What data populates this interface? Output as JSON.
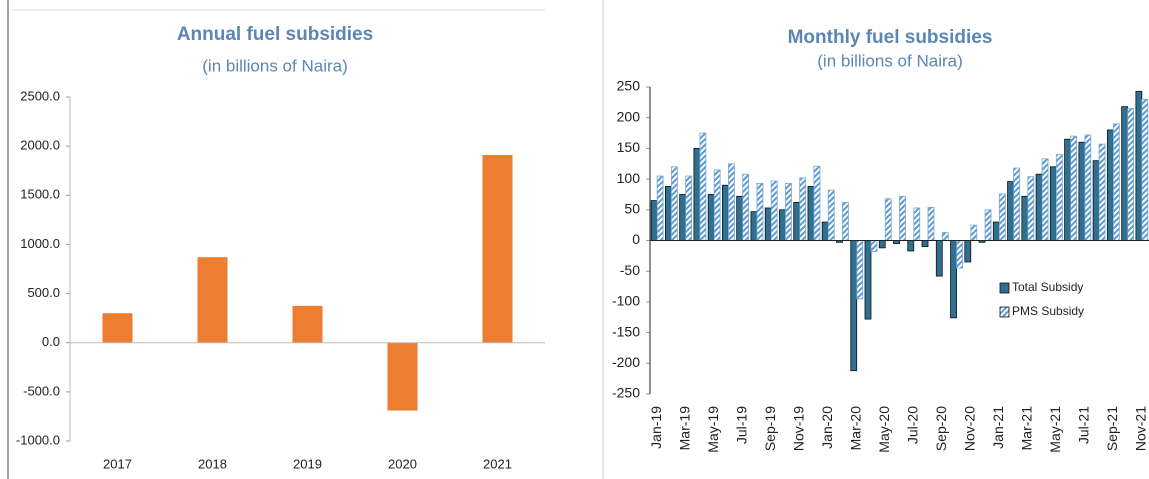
{
  "chart_data": [
    {
      "type": "bar",
      "title": "Annual fuel subsidies",
      "subtitle": "(in billions of Naira)",
      "categories": [
        "2017",
        "2018",
        "2019",
        "2020",
        "2021"
      ],
      "values": [
        300,
        870,
        375,
        -690,
        1910
      ],
      "color": "#ed7d31",
      "ylim": [
        -1000,
        2500
      ],
      "yticks": [
        {
          "value": -1000,
          "label": "-1000.0"
        },
        {
          "value": -500,
          "label": "-500.0"
        },
        {
          "value": 0,
          "label": "0.0"
        },
        {
          "value": 500,
          "label": "500.0"
        },
        {
          "value": 1000,
          "label": "1000.0"
        },
        {
          "value": 1500,
          "label": "1500.0"
        },
        {
          "value": 2000,
          "label": "2000.0"
        },
        {
          "value": 2500,
          "label": "2500.0"
        }
      ]
    },
    {
      "type": "grouped_bar",
      "title": "Monthly fuel subsidies",
      "subtitle": "(in billions of Naira)",
      "categories": [
        "Jan-19",
        null,
        "Mar-19",
        null,
        "May-19",
        null,
        "Jul-19",
        null,
        "Sep-19",
        null,
        "Nov-19",
        null,
        "Jan-20",
        null,
        "Mar-20",
        null,
        "May-20",
        null,
        "Jul-20",
        null,
        "Sep-20",
        null,
        "Nov-20",
        null,
        "Jan-21",
        null,
        "Mar-21",
        null,
        "May-21",
        null,
        "Jul-21",
        null,
        "Sep-21",
        null,
        "Nov-21"
      ],
      "series": [
        {
          "name": "Total Subsidy",
          "color": "#2f6f8f",
          "values": [
            65,
            88,
            75,
            150,
            75,
            90,
            72,
            47,
            53,
            50,
            62,
            88,
            30,
            -3,
            -212,
            -128,
            -12,
            -5,
            -17,
            -10,
            -58,
            -126,
            -35,
            -3,
            30,
            96,
            72,
            108,
            120,
            165,
            160,
            130,
            180,
            218,
            243
          ]
        },
        {
          "name": "PMS Subsidy",
          "color": "#9dc3e6",
          "values": [
            105,
            120,
            105,
            175,
            115,
            125,
            108,
            93,
            97,
            93,
            102,
            121,
            82,
            62,
            -95,
            -18,
            68,
            72,
            53,
            54,
            13,
            -45,
            25,
            50,
            76,
            118,
            104,
            133,
            140,
            170,
            172,
            157,
            190,
            215,
            230
          ]
        }
      ],
      "ylim": [
        -250,
        250
      ],
      "yticks": [
        -250,
        -200,
        -150,
        -100,
        -50,
        0,
        50,
        100,
        150,
        200,
        250
      ]
    }
  ]
}
